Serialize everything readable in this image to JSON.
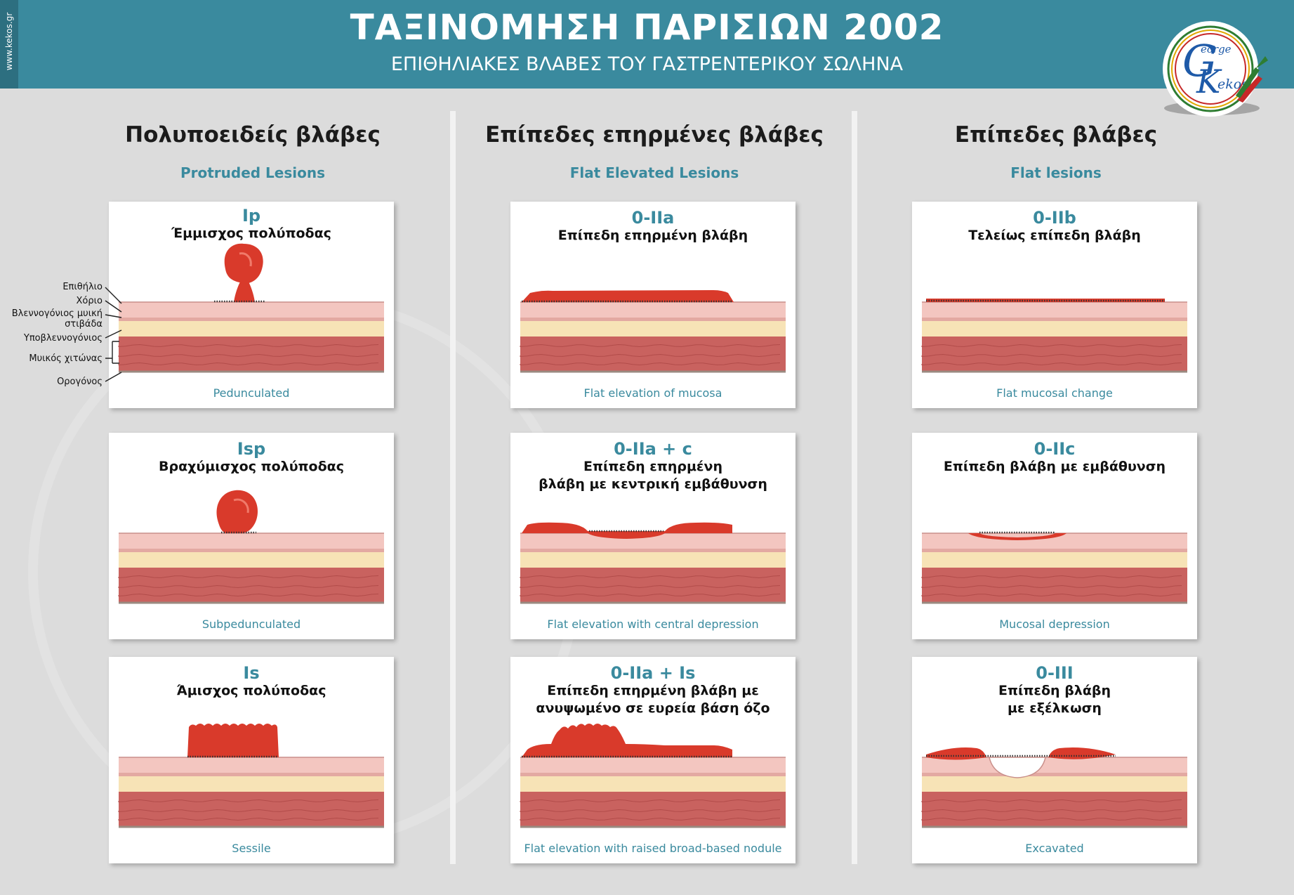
{
  "header": {
    "side_text": "www.kekos.gr",
    "title": "ΤΑΞΙΝΟΜΗΣΗ ΠΑΡΙΣΙΩΝ 2002",
    "subtitle": "ΕΠΙΘΗΛΙΑΚΕΣ ΒΛΑΒΕΣ ΤΟΥ ΓΑΣΤΡΕΝΤΕΡΙΚΟΥ ΣΩΛΗΝΑ",
    "logo_text_top": "eorge",
    "logo_text_bottom": "ekos"
  },
  "colors": {
    "accent": "#3a8a9e",
    "background": "#dcdcdc",
    "lesion": "#d93a2b",
    "mucosa": "#f3c6c0",
    "submucosa": "#f7e3b6",
    "muscle": "#c9625f"
  },
  "columns": [
    {
      "title": "Πολυποειδείς βλάβες",
      "subtitle": "Protruded Lesions"
    },
    {
      "title": "Επίπεδες επηρμένες βλάβες",
      "subtitle": "Flat Elevated Lesions"
    },
    {
      "title": "Επίπεδες βλάβες",
      "subtitle": "Flat lesions"
    }
  ],
  "cards": [
    {
      "code": "Ip",
      "desc": [
        "Έμμισχος πολύποδας"
      ],
      "caption": "Pedunculated"
    },
    {
      "code": "0-IIa",
      "desc": [
        "Επίπεδη επηρμένη βλάβη"
      ],
      "caption": "Flat elevation of mucosa"
    },
    {
      "code": "0-IIb",
      "desc": [
        "Τελείως επίπεδη βλάβη"
      ],
      "caption": "Flat mucosal change"
    },
    {
      "code": "Isp",
      "desc": [
        "Βραχύμισχος πολύποδας"
      ],
      "caption": "Subpedunculated"
    },
    {
      "code": "0-IIa + c",
      "desc": [
        "Επίπεδη επηρμένη",
        "βλάβη με κεντρική εμβάθυνση"
      ],
      "caption": "Flat elevation with central depression"
    },
    {
      "code": "0-IIc",
      "desc": [
        "Επίπεδη βλάβη με εμβάθυνση"
      ],
      "caption": "Mucosal depression"
    },
    {
      "code": "Is",
      "desc": [
        "Άμισχος πολύποδας"
      ],
      "caption": "Sessile"
    },
    {
      "code": "0-IIa + Is",
      "desc": [
        "Επίπεδη επηρμένη βλάβη με",
        "ανυψωμένο σε ευρεία βάση όζο"
      ],
      "caption": "Flat elevation with raised broad-based nodule"
    },
    {
      "code": "0-III",
      "desc": [
        "Επίπεδη βλάβη",
        "με εξέλκωση"
      ],
      "caption": "Excavated"
    }
  ],
  "layer_labels": [
    "Επιθήλιο",
    "Χόριο",
    "Βλεννογόνιος μυική στιβάδα",
    "Υποβλεννογόνιος",
    "Μυικός χιτώνας",
    "Ορογόνος"
  ]
}
